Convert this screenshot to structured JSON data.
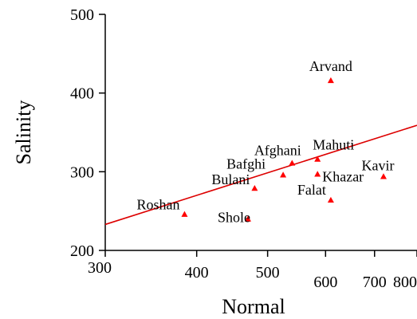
{
  "chart_data": {
    "type": "scatter",
    "title": "",
    "xlabel": "Normal",
    "ylabel": "Salinity",
    "x_scale": "log",
    "xlim": [
      300,
      800
    ],
    "ylim": [
      200,
      500
    ],
    "x_ticks": [
      300,
      400,
      500,
      600,
      700,
      800
    ],
    "y_ticks": [
      200,
      300,
      400,
      500
    ],
    "grid": false,
    "legend": "none",
    "marker": "triangle",
    "point_color": "#ff0000",
    "trendline": {
      "color": "#dd0000",
      "from": [
        300,
        233
      ],
      "to": [
        800,
        359
      ]
    },
    "points": [
      {
        "label": "Arvand",
        "x": 610,
        "y": 416
      },
      {
        "label": "Mahuti",
        "x": 585,
        "y": 316
      },
      {
        "label": "Afghani",
        "x": 540,
        "y": 311
      },
      {
        "label": "Bafghi",
        "x": 525,
        "y": 296
      },
      {
        "label": "Khazar",
        "x": 585,
        "y": 297
      },
      {
        "label": "Kavir",
        "x": 720,
        "y": 294
      },
      {
        "label": "Bulani",
        "x": 480,
        "y": 279
      },
      {
        "label": "Falat",
        "x": 610,
        "y": 264
      },
      {
        "label": "Roshan",
        "x": 385,
        "y": 246
      },
      {
        "label": "Shole",
        "x": 470,
        "y": 240
      }
    ]
  }
}
